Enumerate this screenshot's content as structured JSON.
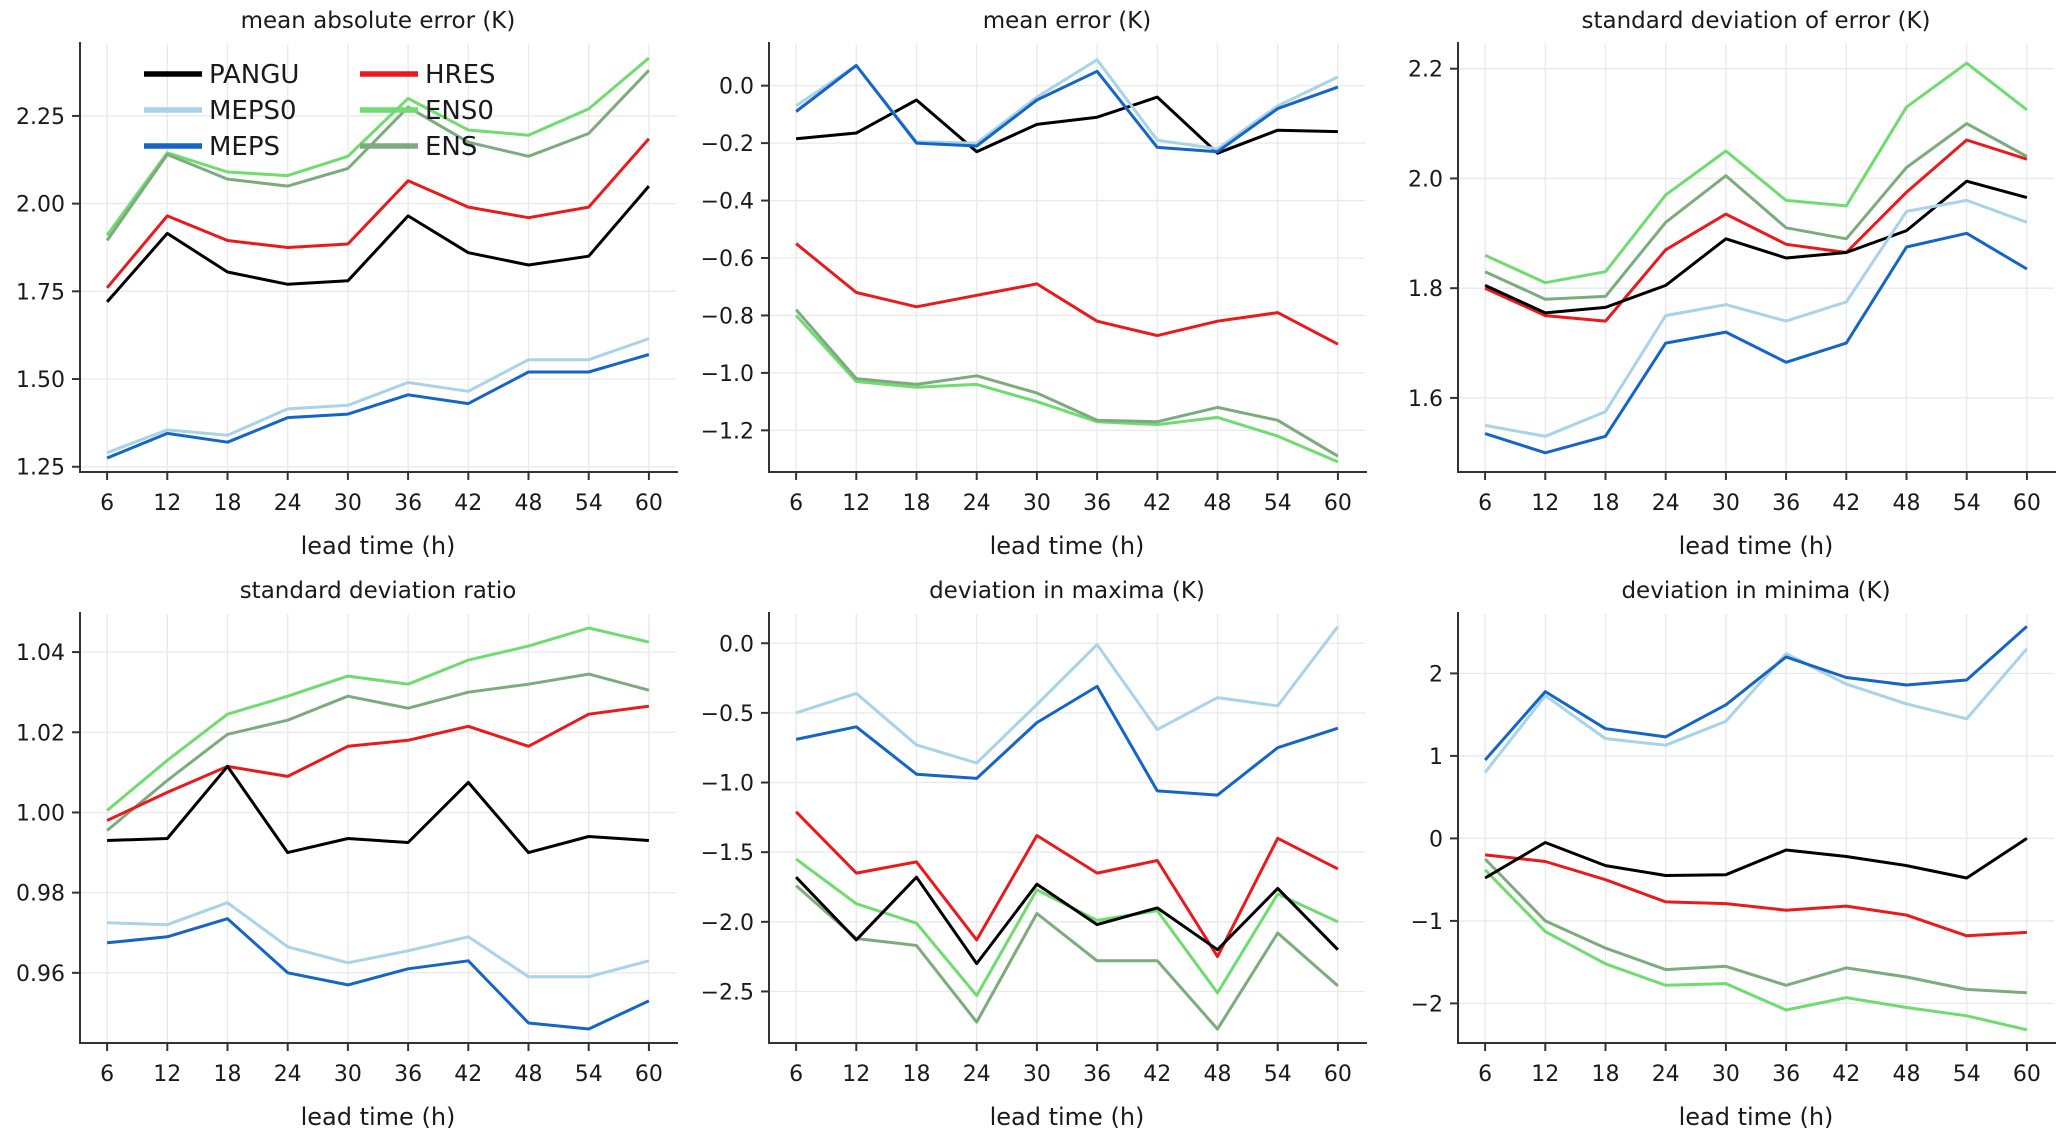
{
  "figure": {
    "background": "#ffffff",
    "grid_color": "#e9e9e9",
    "spine_color": "#333333",
    "text_color": "#1a1a1a"
  },
  "colors": {
    "PANGU": "#000000",
    "MEPS0": "#a8d3e8",
    "MEPS": "#1565c8",
    "HRES": "#ea1a1c",
    "ENS0": "#6edc6e",
    "ENS": "#7dab7d"
  },
  "legend": {
    "rows": [
      [
        "PANGU",
        "HRES"
      ],
      [
        "MEPS0",
        "ENS0"
      ],
      [
        "MEPS",
        "ENS"
      ]
    ]
  },
  "chart_data": [
    {
      "type": "line",
      "title": "mean absolute error (K)",
      "xlabel": "lead time (h)",
      "legend": true,
      "x": [
        6,
        12,
        18,
        24,
        30,
        36,
        42,
        48,
        54,
        60
      ],
      "xtick_labels": [
        "6",
        "12",
        "18",
        "24",
        "30",
        "36",
        "42",
        "48",
        "54",
        "60"
      ],
      "xlim": [
        3.3,
        62.7
      ],
      "ylim": [
        1.235,
        2.455
      ],
      "yticks": [
        1.25,
        1.5,
        1.75,
        2.0,
        2.25
      ],
      "ytick_labels": [
        "1.25",
        "1.50",
        "1.75",
        "2.00",
        "2.25"
      ],
      "series": [
        {
          "name": "ENS0",
          "values": [
            1.91,
            2.145,
            2.09,
            2.08,
            2.135,
            2.3,
            2.21,
            2.195,
            2.27,
            2.415
          ]
        },
        {
          "name": "ENS",
          "values": [
            1.895,
            2.14,
            2.07,
            2.05,
            2.1,
            2.275,
            2.175,
            2.135,
            2.2,
            2.38
          ]
        },
        {
          "name": "HRES",
          "values": [
            1.76,
            1.965,
            1.895,
            1.875,
            1.885,
            2.065,
            1.99,
            1.96,
            1.99,
            2.185
          ]
        },
        {
          "name": "PANGU",
          "values": [
            1.72,
            1.915,
            1.805,
            1.77,
            1.78,
            1.965,
            1.86,
            1.825,
            1.85,
            2.05
          ]
        },
        {
          "name": "MEPS0",
          "values": [
            1.29,
            1.355,
            1.34,
            1.415,
            1.425,
            1.49,
            1.465,
            1.555,
            1.555,
            1.615
          ]
        },
        {
          "name": "MEPS",
          "values": [
            1.275,
            1.345,
            1.32,
            1.39,
            1.4,
            1.455,
            1.43,
            1.52,
            1.52,
            1.57
          ]
        }
      ]
    },
    {
      "type": "line",
      "title": "mean error (K)",
      "xlabel": "lead time (h)",
      "legend": false,
      "x": [
        6,
        12,
        18,
        24,
        30,
        36,
        42,
        48,
        54,
        60
      ],
      "xtick_labels": [
        "6",
        "12",
        "18",
        "24",
        "30",
        "36",
        "42",
        "48",
        "54",
        "60"
      ],
      "xlim": [
        3.3,
        62.7
      ],
      "ylim": [
        -1.345,
        0.145
      ],
      "yticks": [
        0.0,
        -0.2,
        -0.4,
        -0.6,
        -0.8,
        -1.0,
        -1.2
      ],
      "ytick_labels": [
        "0.0",
        "−0.2",
        "−0.4",
        "−0.6",
        "−0.8",
        "−1.0",
        "−1.2"
      ],
      "series": [
        {
          "name": "ENS0",
          "values": [
            -0.8,
            -1.03,
            -1.05,
            -1.04,
            -1.1,
            -1.17,
            -1.18,
            -1.155,
            -1.22,
            -1.31
          ]
        },
        {
          "name": "ENS",
          "values": [
            -0.78,
            -1.02,
            -1.04,
            -1.01,
            -1.07,
            -1.165,
            -1.17,
            -1.12,
            -1.165,
            -1.29
          ]
        },
        {
          "name": "HRES",
          "values": [
            -0.55,
            -0.72,
            -0.77,
            -0.73,
            -0.69,
            -0.82,
            -0.87,
            -0.82,
            -0.79,
            -0.9
          ]
        },
        {
          "name": "PANGU",
          "values": [
            -0.185,
            -0.165,
            -0.05,
            -0.23,
            -0.135,
            -0.11,
            -0.04,
            -0.235,
            -0.155,
            -0.16
          ]
        },
        {
          "name": "MEPS0",
          "values": [
            -0.07,
            0.07,
            -0.195,
            -0.2,
            -0.04,
            0.09,
            -0.19,
            -0.22,
            -0.07,
            0.03
          ]
        },
        {
          "name": "MEPS",
          "values": [
            -0.09,
            0.07,
            -0.2,
            -0.21,
            -0.05,
            0.05,
            -0.215,
            -0.23,
            -0.08,
            -0.005
          ]
        }
      ]
    },
    {
      "type": "line",
      "title": "standard deviation of error (K)",
      "xlabel": "lead time (h)",
      "legend": false,
      "x": [
        6,
        12,
        18,
        24,
        30,
        36,
        42,
        48,
        54,
        60
      ],
      "xtick_labels": [
        "6",
        "12",
        "18",
        "24",
        "30",
        "36",
        "42",
        "48",
        "54",
        "60"
      ],
      "xlim": [
        3.3,
        62.7
      ],
      "ylim": [
        1.465,
        2.245
      ],
      "yticks": [
        1.6,
        1.8,
        2.0,
        2.2
      ],
      "ytick_labels": [
        "1.6",
        "1.8",
        "2.0",
        "2.2"
      ],
      "series": [
        {
          "name": "ENS0",
          "values": [
            1.86,
            1.81,
            1.83,
            1.97,
            2.05,
            1.96,
            1.95,
            2.13,
            2.21,
            2.125
          ]
        },
        {
          "name": "ENS",
          "values": [
            1.83,
            1.78,
            1.785,
            1.92,
            2.005,
            1.91,
            1.89,
            2.02,
            2.1,
            2.04
          ]
        },
        {
          "name": "HRES",
          "values": [
            1.8,
            1.75,
            1.74,
            1.87,
            1.935,
            1.88,
            1.865,
            1.975,
            2.07,
            2.035
          ]
        },
        {
          "name": "PANGU",
          "values": [
            1.805,
            1.755,
            1.765,
            1.805,
            1.89,
            1.855,
            1.865,
            1.905,
            1.995,
            1.965
          ]
        },
        {
          "name": "MEPS0",
          "values": [
            1.55,
            1.53,
            1.575,
            1.75,
            1.77,
            1.74,
            1.775,
            1.94,
            1.96,
            1.92
          ]
        },
        {
          "name": "MEPS",
          "values": [
            1.535,
            1.5,
            1.53,
            1.7,
            1.72,
            1.665,
            1.7,
            1.875,
            1.9,
            1.835
          ]
        }
      ]
    },
    {
      "type": "line",
      "title": "standard deviation ratio",
      "xlabel": "lead time (h)",
      "legend": false,
      "x": [
        6,
        12,
        18,
        24,
        30,
        36,
        42,
        48,
        54,
        60
      ],
      "xtick_labels": [
        "6",
        "12",
        "18",
        "24",
        "30",
        "36",
        "42",
        "48",
        "54",
        "60"
      ],
      "xlim": [
        3.3,
        62.7
      ],
      "ylim": [
        0.9425,
        1.0495
      ],
      "yticks": [
        0.96,
        0.98,
        1.0,
        1.02,
        1.04
      ],
      "ytick_labels": [
        "0.96",
        "0.98",
        "1.00",
        "1.02",
        "1.04"
      ],
      "series": [
        {
          "name": "ENS0",
          "values": [
            1.0005,
            1.013,
            1.0245,
            1.029,
            1.034,
            1.032,
            1.038,
            1.0415,
            1.046,
            1.0425
          ]
        },
        {
          "name": "ENS",
          "values": [
            0.9955,
            1.008,
            1.0195,
            1.023,
            1.029,
            1.026,
            1.03,
            1.032,
            1.0345,
            1.0305
          ]
        },
        {
          "name": "HRES",
          "values": [
            0.998,
            1.005,
            1.0115,
            1.009,
            1.0165,
            1.018,
            1.0215,
            1.0165,
            1.0245,
            1.0265
          ]
        },
        {
          "name": "PANGU",
          "values": [
            0.993,
            0.9935,
            1.0115,
            0.99,
            0.9935,
            0.9925,
            1.0075,
            0.99,
            0.994,
            0.993
          ]
        },
        {
          "name": "MEPS0",
          "values": [
            0.9725,
            0.972,
            0.9775,
            0.9665,
            0.9625,
            0.9655,
            0.969,
            0.959,
            0.959,
            0.963
          ]
        },
        {
          "name": "MEPS",
          "values": [
            0.9675,
            0.969,
            0.9735,
            0.96,
            0.957,
            0.961,
            0.963,
            0.9475,
            0.946,
            0.953
          ]
        }
      ]
    },
    {
      "type": "line",
      "title": "deviation in maxima (K)",
      "xlabel": "lead time (h)",
      "legend": false,
      "x": [
        6,
        12,
        18,
        24,
        30,
        36,
        42,
        48,
        54,
        60
      ],
      "xtick_labels": [
        "6",
        "12",
        "18",
        "24",
        "30",
        "36",
        "42",
        "48",
        "54",
        "60"
      ],
      "xlim": [
        3.3,
        62.7
      ],
      "ylim": [
        -2.87,
        0.21
      ],
      "yticks": [
        0.0,
        -0.5,
        -1.0,
        -1.5,
        -2.0,
        -2.5
      ],
      "ytick_labels": [
        "0.0",
        "−0.5",
        "−1.0",
        "−1.5",
        "−2.0",
        "−2.5"
      ],
      "series": [
        {
          "name": "ENS0",
          "values": [
            -1.55,
            -1.87,
            -2.01,
            -2.53,
            -1.77,
            -1.99,
            -1.92,
            -2.51,
            -1.8,
            -2.0
          ]
        },
        {
          "name": "ENS",
          "values": [
            -1.74,
            -2.12,
            -2.17,
            -2.72,
            -1.94,
            -2.28,
            -2.28,
            -2.77,
            -2.08,
            -2.46
          ]
        },
        {
          "name": "HRES",
          "values": [
            -1.21,
            -1.65,
            -1.57,
            -2.13,
            -1.38,
            -1.65,
            -1.56,
            -2.25,
            -1.4,
            -1.62
          ]
        },
        {
          "name": "PANGU",
          "values": [
            -1.68,
            -2.13,
            -1.68,
            -2.3,
            -1.73,
            -2.02,
            -1.9,
            -2.2,
            -1.76,
            -2.2
          ]
        },
        {
          "name": "MEPS0",
          "values": [
            -0.5,
            -0.36,
            -0.73,
            -0.86,
            -0.44,
            -0.01,
            -0.62,
            -0.39,
            -0.45,
            0.12
          ]
        },
        {
          "name": "MEPS",
          "values": [
            -0.69,
            -0.6,
            -0.94,
            -0.97,
            -0.57,
            -0.31,
            -1.06,
            -1.09,
            -0.75,
            -0.61
          ]
        }
      ]
    },
    {
      "type": "line",
      "title": "deviation in minima (K)",
      "xlabel": "lead time (h)",
      "legend": false,
      "x": [
        6,
        12,
        18,
        24,
        30,
        36,
        42,
        48,
        54,
        60
      ],
      "xtick_labels": [
        "6",
        "12",
        "18",
        "24",
        "30",
        "36",
        "42",
        "48",
        "54",
        "60"
      ],
      "xlim": [
        3.3,
        62.7
      ],
      "ylim": [
        -2.48,
        2.72
      ],
      "yticks": [
        -2,
        -1,
        0,
        1,
        2
      ],
      "ytick_labels": [
        "−2",
        "−1",
        "0",
        "1",
        "2"
      ],
      "series": [
        {
          "name": "ENS0",
          "values": [
            -0.38,
            -1.13,
            -1.52,
            -1.78,
            -1.76,
            -2.08,
            -1.93,
            -2.05,
            -2.15,
            -2.32
          ]
        },
        {
          "name": "ENS",
          "values": [
            -0.25,
            -1.0,
            -1.33,
            -1.59,
            -1.55,
            -1.78,
            -1.57,
            -1.68,
            -1.83,
            -1.87
          ]
        },
        {
          "name": "HRES",
          "values": [
            -0.2,
            -0.28,
            -0.5,
            -0.77,
            -0.79,
            -0.87,
            -0.82,
            -0.93,
            -1.18,
            -1.14
          ]
        },
        {
          "name": "PANGU",
          "values": [
            -0.48,
            -0.05,
            -0.33,
            -0.45,
            -0.44,
            -0.14,
            -0.22,
            -0.33,
            -0.48,
            0.0
          ]
        },
        {
          "name": "MEPS0",
          "values": [
            0.8,
            1.73,
            1.21,
            1.13,
            1.42,
            2.24,
            1.87,
            1.63,
            1.45,
            2.3
          ]
        },
        {
          "name": "MEPS",
          "values": [
            0.95,
            1.78,
            1.33,
            1.23,
            1.62,
            2.2,
            1.95,
            1.86,
            1.92,
            2.57
          ]
        }
      ]
    }
  ]
}
